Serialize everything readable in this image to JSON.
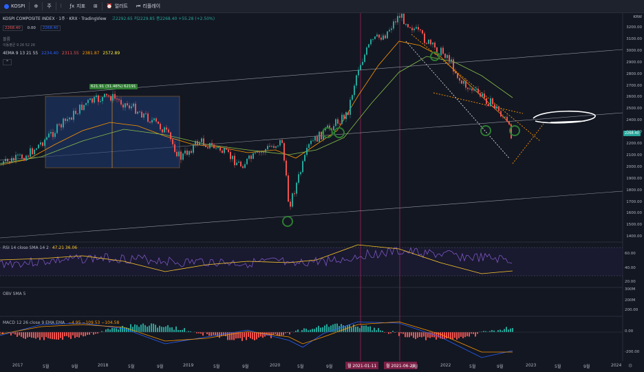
{
  "toolbar": {
    "symbol": "KOSPI",
    "interval": "주",
    "indicators_label": "지표",
    "alert_label": "얼러트",
    "replay_label": "리플레이"
  },
  "legend_main": {
    "title": "KOSPI COMPOSITE INDEX · 1주 · KRX · TradingView",
    "ohlc": "고2292.65 저2229.85 종2268.40 +55.28 (+2.50%)",
    "price_box_1": "2268.40",
    "price_box_2": "0.00",
    "price_box_3": "2268.40",
    "line2": "볼륨",
    "line3": "이동평균 9 26 52 26",
    "ema_label": "4EMA 9 13 21 55",
    "ema_values": [
      "2234.40",
      "2311.55",
      "2381.87",
      "2572.89"
    ]
  },
  "measure_tag": "621.91 (31.46%) 62191",
  "price_axis": {
    "currency": "KRW",
    "labels": [
      "3200.00",
      "3100.00",
      "3000.00",
      "2900.00",
      "2800.00",
      "2700.00",
      "2600.00",
      "2500.00",
      "2400.00",
      "2300.00",
      "2200.00",
      "2100.00",
      "2000.00",
      "1900.00",
      "1800.00",
      "1700.00",
      "1600.00",
      "1500.00",
      "1400.00"
    ],
    "last_price": "2268.40"
  },
  "rsi": {
    "label": "RSI 14 close SMA 14 2",
    "values": "47.21  36.06",
    "axis": [
      "60.00",
      "40.00",
      "20.00"
    ]
  },
  "obv": {
    "label": "OBV SMA 5",
    "axis": [
      "300M",
      "200M"
    ]
  },
  "macd": {
    "label": "MACD 12 26 close 9 EMA EMA",
    "values": "−4.95  −109.53  −104.58",
    "axis": [
      "200.00",
      "0.00",
      "-200.00"
    ]
  },
  "time_axis": {
    "labels": [
      "2017",
      "5월",
      "9월",
      "2018",
      "5월",
      "9월",
      "2019",
      "5월",
      "9월",
      "2020",
      "5월",
      "9월",
      "5월",
      "9월",
      "2022",
      "5월",
      "9월",
      "2023",
      "5월",
      "9월",
      "2024"
    ],
    "highlight_1": "월 2021-01-11",
    "highlight_2": "월 2021-06-28"
  },
  "colors": {
    "up": "#26a69a",
    "down": "#ef5350",
    "bg": "#131722"
  }
}
